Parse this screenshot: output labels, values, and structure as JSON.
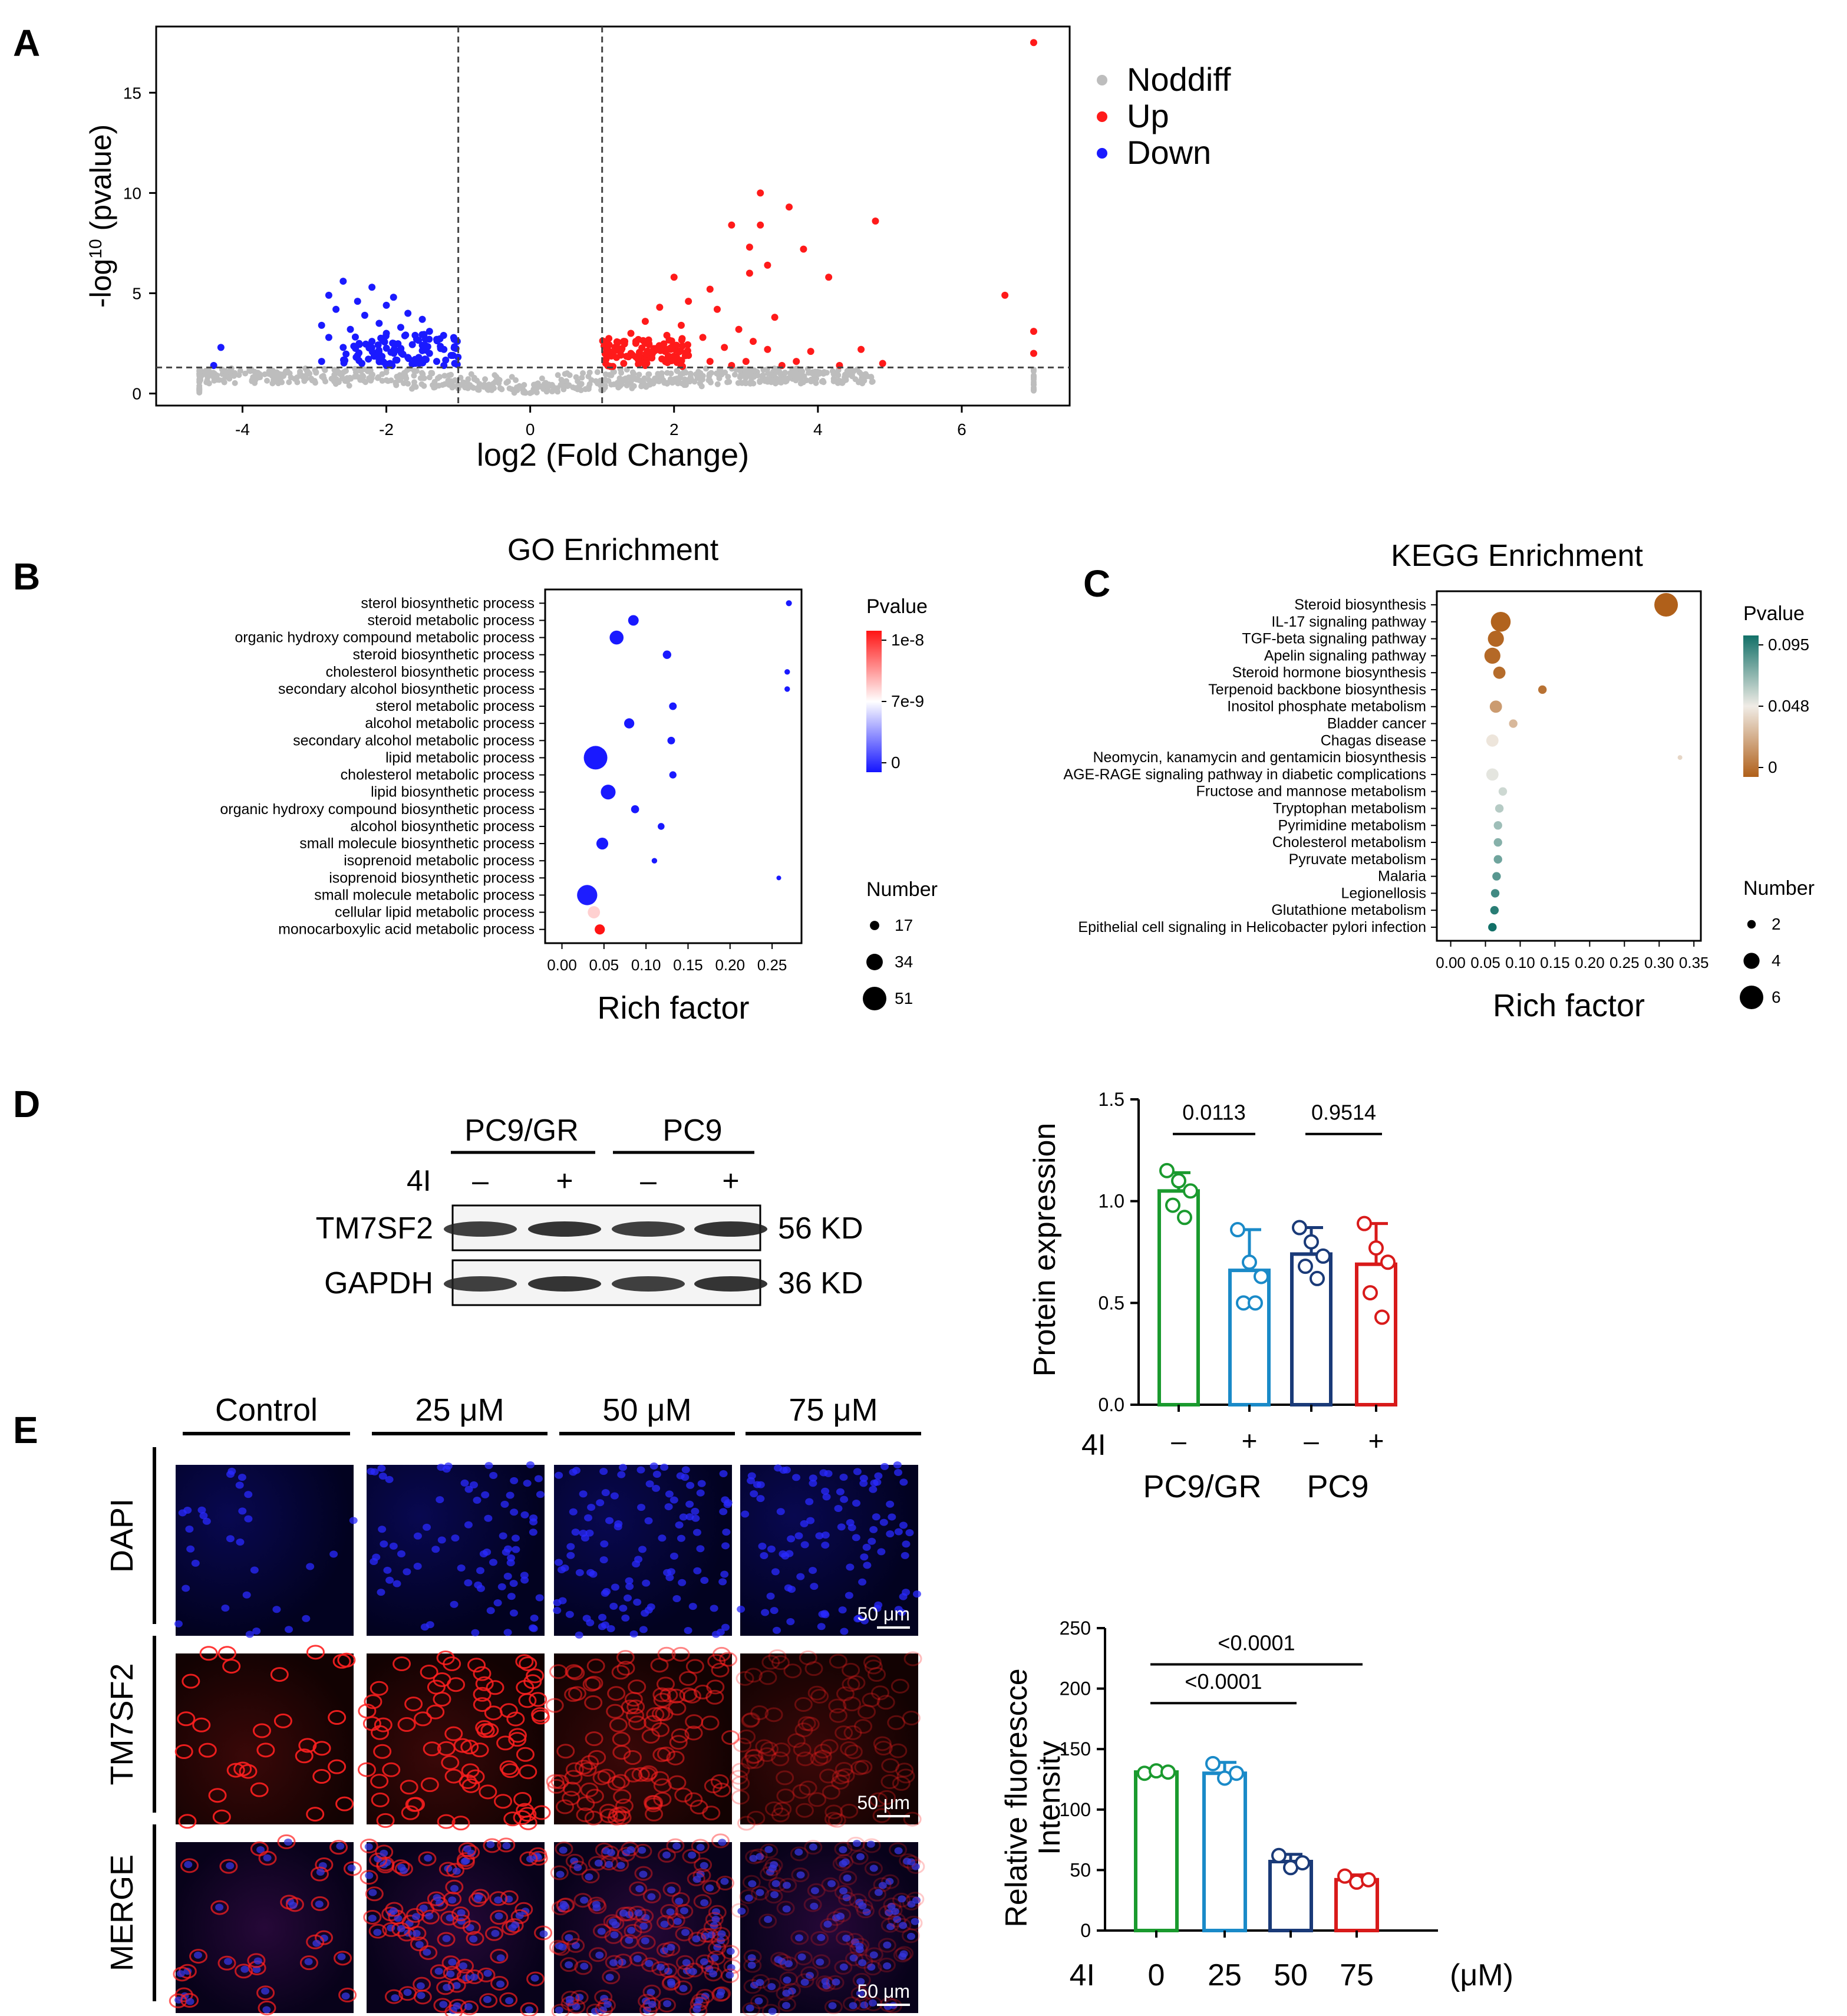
{
  "panel_letters": {
    "a": "A",
    "b": "B",
    "c": "C",
    "d": "D",
    "e": "E"
  },
  "chart_data": [
    {
      "id": "volcano",
      "type": "scatter",
      "xlabel": "log2 (Fold Change)",
      "ylabel_main": "-log",
      "ylabel_sup": "10",
      "ylabel_tail": " (pvalue)",
      "xlim": [
        -5.2,
        7.5
      ],
      "ylim": [
        -0.6,
        18.3
      ],
      "xticks": [
        -4,
        -2,
        0,
        2,
        4,
        6
      ],
      "yticks": [
        0,
        5,
        10,
        15
      ],
      "threshold_x": [
        -1,
        1
      ],
      "threshold_y": 1.3,
      "legend": [
        {
          "label": "Noddiff",
          "color": "#bdbdbd"
        },
        {
          "label": "Up",
          "color": "#ff1a1a"
        },
        {
          "label": "Down",
          "color": "#1a1aff"
        }
      ],
      "series": [
        {
          "name": "Up",
          "points": [
            [
              7.0,
              17.5
            ],
            [
              3.2,
              10.0
            ],
            [
              3.6,
              9.3
            ],
            [
              4.8,
              8.6
            ],
            [
              2.8,
              8.4
            ],
            [
              3.2,
              8.4
            ],
            [
              3.05,
              7.3
            ],
            [
              3.8,
              7.2
            ],
            [
              3.3,
              6.4
            ],
            [
              3.05,
              6.0
            ],
            [
              4.15,
              5.8
            ],
            [
              2.0,
              5.8
            ],
            [
              2.5,
              5.2
            ],
            [
              6.6,
              4.9
            ],
            [
              7.0,
              3.1
            ],
            [
              2.2,
              4.6
            ],
            [
              1.8,
              4.3
            ],
            [
              2.6,
              4.2
            ],
            [
              3.4,
              3.8
            ],
            [
              1.6,
              3.6
            ],
            [
              2.1,
              3.4
            ],
            [
              2.9,
              3.2
            ],
            [
              1.4,
              3.0
            ],
            [
              1.9,
              2.9
            ],
            [
              2.4,
              2.8
            ],
            [
              3.1,
              2.6
            ],
            [
              1.3,
              2.6
            ],
            [
              1.6,
              2.5
            ],
            [
              2.0,
              2.4
            ],
            [
              2.7,
              2.3
            ],
            [
              3.3,
              2.2
            ],
            [
              4.6,
              2.2
            ],
            [
              3.9,
              2.1
            ],
            [
              1.1,
              2.1
            ],
            [
              1.4,
              2.0
            ],
            [
              1.7,
              2.0
            ],
            [
              2.2,
              1.9
            ],
            [
              7.0,
              2.0
            ],
            [
              1.2,
              1.8
            ],
            [
              1.5,
              1.7
            ],
            [
              1.9,
              1.7
            ],
            [
              2.5,
              1.6
            ],
            [
              3.0,
              1.6
            ],
            [
              3.7,
              1.6
            ],
            [
              4.9,
              1.5
            ],
            [
              1.05,
              1.5
            ],
            [
              1.3,
              1.5
            ],
            [
              1.6,
              1.4
            ],
            [
              2.1,
              1.4
            ],
            [
              2.8,
              1.4
            ],
            [
              3.5,
              1.4
            ],
            [
              4.3,
              1.4
            ],
            [
              1.15,
              1.35
            ]
          ]
        },
        {
          "name": "Down",
          "points": [
            [
              -2.6,
              5.6
            ],
            [
              -2.2,
              5.3
            ],
            [
              -2.8,
              4.9
            ],
            [
              -1.9,
              4.8
            ],
            [
              -2.4,
              4.6
            ],
            [
              -2.0,
              4.4
            ],
            [
              -2.7,
              4.2
            ],
            [
              -1.7,
              4.0
            ],
            [
              -2.3,
              3.9
            ],
            [
              -1.5,
              3.7
            ],
            [
              -2.1,
              3.5
            ],
            [
              -2.9,
              3.4
            ],
            [
              -1.8,
              3.3
            ],
            [
              -2.5,
              3.2
            ],
            [
              -1.4,
              3.1
            ],
            [
              -2.0,
              3.0
            ],
            [
              -1.6,
              2.9
            ],
            [
              -2.8,
              2.8
            ],
            [
              -1.3,
              2.7
            ],
            [
              -2.2,
              2.6
            ],
            [
              -1.9,
              2.5
            ],
            [
              -1.5,
              2.4
            ],
            [
              -2.6,
              2.3
            ],
            [
              -1.2,
              2.2
            ],
            [
              -4.3,
              2.3
            ],
            [
              -1.8,
              2.1
            ],
            [
              -1.4,
              2.0
            ],
            [
              -2.4,
              1.9
            ],
            [
              -1.1,
              1.9
            ],
            [
              -1.7,
              1.8
            ],
            [
              -2.1,
              1.7
            ],
            [
              -1.3,
              1.6
            ],
            [
              -2.9,
              1.6
            ],
            [
              -1.6,
              1.5
            ],
            [
              -1.05,
              1.5
            ],
            [
              -2.0,
              1.4
            ],
            [
              -1.2,
              1.4
            ],
            [
              -4.4,
              1.4
            ]
          ]
        }
      ]
    },
    {
      "id": "go",
      "type": "scatter",
      "title": "GO Enrichment",
      "xlabel": "Rich factor",
      "xlim": [
        -0.02,
        0.285
      ],
      "xticks": [
        0.0,
        0.05,
        0.1,
        0.15,
        0.2,
        0.25
      ],
      "xtick_labels": [
        "0.00",
        "0.05",
        "0.10",
        "0.15",
        "0.20",
        "0.25"
      ],
      "terms": [
        "sterol biosynthetic process",
        "steroid metabolic process",
        "organic hydroxy compound metabolic process",
        "steroid biosynthetic process",
        "cholesterol biosynthetic process",
        "secondary alcohol biosynthetic process",
        "sterol metabolic process",
        "alcohol metabolic process",
        "secondary alcohol metabolic process",
        "lipid metabolic process",
        "cholesterol metabolic process",
        "lipid biosynthetic process",
        "organic hydroxy compound biosynthetic process",
        "alcohol biosynthetic process",
        "small molecule biosynthetic process",
        "isoprenoid metabolic process",
        "isoprenoid biosynthetic process",
        "small molecule metabolic process",
        "cellular lipid metabolic process",
        "monocarboxylic acid metabolic process"
      ],
      "rich_factor": [
        0.27,
        0.085,
        0.065,
        0.125,
        0.268,
        0.268,
        0.132,
        0.08,
        0.13,
        0.04,
        0.132,
        0.055,
        0.087,
        0.118,
        0.048,
        0.11,
        0.258,
        0.03,
        0.038,
        0.045
      ],
      "count": [
        9,
        20,
        28,
        15,
        8,
        8,
        13,
        19,
        13,
        51,
        12,
        30,
        14,
        11,
        23,
        8,
        6,
        43,
        24,
        19
      ],
      "pvalue": [
        1e-10,
        1e-10,
        1e-10,
        1e-10,
        1e-10,
        1e-10,
        1e-10,
        1e-10,
        1e-10,
        1e-10,
        1e-10,
        1e-10,
        1e-10,
        1e-10,
        1e-10,
        1e-10,
        1e-10,
        2e-10,
        6e-09,
        1e-08
      ],
      "legend_color_title": "Pvalue",
      "legend_color_labels": [
        "1e-8",
        "7e-9",
        "0"
      ],
      "legend_size_title": "Number",
      "legend_size_values": [
        17,
        34,
        51
      ]
    },
    {
      "id": "kegg",
      "type": "scatter",
      "title": "KEGG Enrichment",
      "xlabel": "Rich factor",
      "xlim": [
        -0.02,
        0.36
      ],
      "xticks": [
        0.0,
        0.05,
        0.1,
        0.15,
        0.2,
        0.25,
        0.3,
        0.35
      ],
      "xtick_labels": [
        "0.00",
        "0.05",
        "0.10",
        "0.15",
        "0.20",
        "0.25",
        "0.30",
        "0.35"
      ],
      "terms": [
        "Steroid biosynthesis",
        "IL-17 signaling pathway",
        "TGF-beta signaling pathway",
        "Apelin signaling pathway",
        "Steroid hormone biosynthesis",
        "Terpenoid backbone biosynthesis",
        "Inositol phosphate metabolism",
        "Bladder cancer",
        "Chagas disease",
        "Neomycin, kanamycin and gentamicin biosynthesis",
        "AGE-RAGE signaling pathway in diabetic complications",
        "Fructose and mannose metabolism",
        "Tryptophan metabolism",
        "Pyrimidine metabolism",
        "Cholesterol metabolism",
        "Pyruvate metabolism",
        "Malaria",
        "Legionellosis",
        "Glutathione metabolism",
        "Epithelial cell signaling in Helicobacter pylori infection"
      ],
      "rich_factor": [
        0.31,
        0.072,
        0.065,
        0.06,
        0.07,
        0.132,
        0.065,
        0.09,
        0.06,
        0.33,
        0.06,
        0.075,
        0.07,
        0.068,
        0.068,
        0.068,
        0.066,
        0.064,
        0.063,
        0.06
      ],
      "count": [
        6,
        5,
        4,
        4,
        3,
        2,
        3,
        2,
        3,
        1,
        3,
        2,
        2,
        2,
        2,
        2,
        2,
        2,
        2,
        2
      ],
      "pvalue": [
        0.0,
        0.001,
        0.002,
        0.003,
        0.004,
        0.006,
        0.02,
        0.03,
        0.045,
        0.04,
        0.05,
        0.055,
        0.06,
        0.065,
        0.07,
        0.075,
        0.08,
        0.085,
        0.09,
        0.095
      ],
      "legend_color_title": "Pvalue",
      "legend_color_labels": [
        "0.095",
        "0.048",
        "0"
      ],
      "legend_size_title": "Number",
      "legend_size_values": [
        2,
        4,
        6
      ]
    },
    {
      "id": "protein-bar",
      "type": "bar",
      "ylabel": "Protein expression",
      "ylim": [
        0,
        1.5
      ],
      "yticks": [
        0.0,
        0.5,
        1.0,
        1.5
      ],
      "ytick_labels": [
        "0.0",
        "0.5",
        "1.0",
        "1.5"
      ],
      "treatment_label": "4I",
      "treatment_marks": [
        "–",
        "+",
        "–",
        "+"
      ],
      "group_labels": [
        "PC9/GR",
        "PC9"
      ],
      "colors": [
        "#1a9a2e",
        "#1a8ac8",
        "#1a3a78",
        "#d81a1a"
      ],
      "values": [
        1.05,
        0.66,
        0.74,
        0.69
      ],
      "errors": [
        0.09,
        0.2,
        0.13,
        0.2
      ],
      "points": [
        [
          1.15,
          1.1,
          1.05,
          0.98,
          0.92
        ],
        [
          0.86,
          0.7,
          0.63,
          0.5,
          0.5
        ],
        [
          0.87,
          0.8,
          0.73,
          0.68,
          0.62
        ],
        [
          0.89,
          0.77,
          0.7,
          0.55,
          0.43
        ]
      ],
      "comparisons": [
        {
          "from": 0,
          "to": 1,
          "label": "0.0113",
          "y": 1.33
        },
        {
          "from": 2,
          "to": 3,
          "label": "0.9514",
          "y": 1.33
        }
      ]
    },
    {
      "id": "fluorescence-bar",
      "type": "bar",
      "ylabel_line1": "Relative fluorescce",
      "ylabel_line2": "Intensity",
      "ylim": [
        0,
        250
      ],
      "yticks": [
        0,
        50,
        100,
        150,
        200,
        250
      ],
      "categories": [
        "0",
        "25",
        "50",
        "75"
      ],
      "treatment_label": "4I",
      "unit_label": "(μM)",
      "colors": [
        "#1a9a2e",
        "#1a8ac8",
        "#1a3a78",
        "#d81a1a"
      ],
      "values": [
        131,
        130,
        57,
        42
      ],
      "errors": [
        3,
        9,
        6,
        4
      ],
      "points": [
        [
          130,
          132,
          131
        ],
        [
          138,
          126,
          130
        ],
        [
          62,
          52,
          56
        ],
        [
          45,
          40,
          42
        ]
      ],
      "comparisons": [
        {
          "from": 0,
          "to": 2,
          "label": "<0.0001",
          "y": 188
        },
        {
          "from": 0,
          "to": 3,
          "label": "<0.0001",
          "y": 220
        }
      ]
    }
  ],
  "western_blot": {
    "groups": [
      "PC9/GR",
      "PC9"
    ],
    "treatment_label": "4I",
    "treatment_marks": [
      "–",
      "+",
      "–",
      "+"
    ],
    "bands": [
      {
        "label": "TM7SF2",
        "size": "56 KD"
      },
      {
        "label": "GAPDH",
        "size": "36 KD"
      }
    ]
  },
  "microscopy": {
    "columns": [
      "Control",
      "25 μM",
      "50 μM",
      "75 μM"
    ],
    "rows": [
      "DAPI",
      "TM7SF2",
      "MERGE"
    ],
    "scale_bar": "50 μm"
  }
}
